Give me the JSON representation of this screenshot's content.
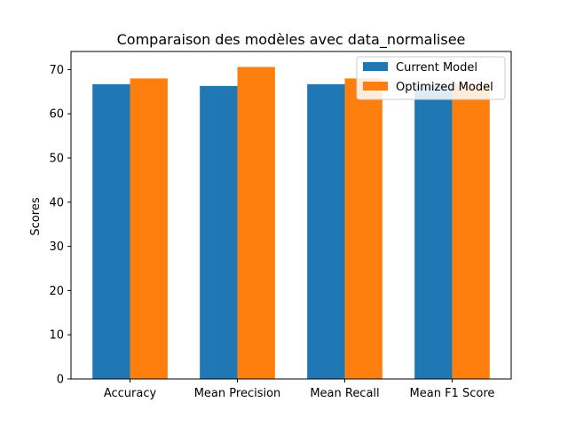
{
  "chart_data": {
    "type": "bar",
    "title": "Comparaison des modèles avec data_normalisee",
    "xlabel": "",
    "ylabel": "Scores",
    "categories": [
      "Accuracy",
      "Mean Precision",
      "Mean Recall",
      "Mean F1 Score"
    ],
    "series": [
      {
        "name": "Current Model",
        "values": [
          66.7,
          66.3,
          66.7,
          66.4
        ],
        "color": "#1f77b4"
      },
      {
        "name": "Optimized Model",
        "values": [
          68.0,
          70.6,
          68.0,
          66.8
        ],
        "color": "#ff7f0e"
      }
    ],
    "ylim": [
      0,
      74.1
    ],
    "yticks": [
      0,
      10,
      20,
      30,
      40,
      50,
      60,
      70
    ],
    "grid": false,
    "legend_position": "upper-right"
  }
}
